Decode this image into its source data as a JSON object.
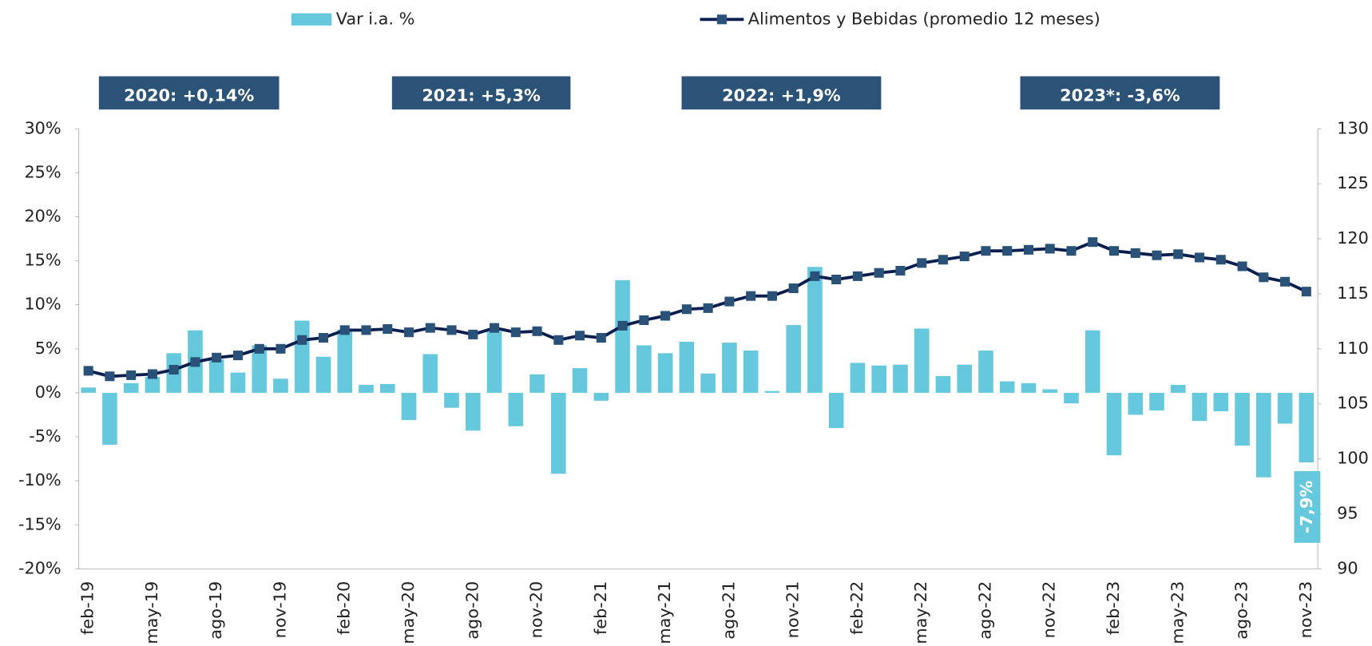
{
  "chart_data": {
    "type": "bar_line",
    "categories": [
      "feb-19",
      null,
      null,
      "may-19",
      null,
      null,
      "ago-19",
      null,
      null,
      "nov-19",
      null,
      null,
      "feb-20",
      null,
      null,
      "may-20",
      null,
      null,
      "ago-20",
      null,
      null,
      "nov-20",
      null,
      null,
      "feb-21",
      null,
      null,
      "may-21",
      null,
      null,
      "ago-21",
      null,
      null,
      "nov-21",
      null,
      null,
      "feb-22",
      null,
      null,
      "may-22",
      null,
      null,
      "ago-22",
      null,
      null,
      "nov-22",
      null,
      null,
      "feb-23",
      null,
      null,
      "may-23",
      null,
      null,
      "ago-23",
      null,
      null,
      "nov-23"
    ],
    "series": [
      {
        "name": "Var i.a. %",
        "color": "#66c8dc",
        "type": "bar",
        "values": [
          0.6,
          -5.9,
          1.1,
          1.8,
          4.5,
          7.1,
          3.8,
          2.3,
          5.4,
          1.6,
          8.2,
          4.1,
          7.2,
          0.9,
          1.0,
          -3.1,
          4.4,
          -1.7,
          -4.3,
          7.0,
          -3.8,
          2.1,
          -9.2,
          2.8,
          -0.9,
          12.8,
          5.4,
          4.5,
          5.8,
          2.2,
          5.7,
          4.8,
          0.2,
          7.7,
          14.3,
          -4.0,
          3.4,
          3.1,
          3.2,
          7.3,
          1.9,
          3.2,
          4.8,
          1.3,
          1.1,
          0.4,
          -1.2,
          7.1,
          -7.1,
          -2.5,
          -2.0,
          0.9,
          -3.2,
          -2.1,
          -6.0,
          -9.6,
          -3.5,
          -7.9
        ],
        "value_labels": [
          null,
          null,
          null,
          null,
          null,
          null,
          null,
          null,
          null,
          null,
          null,
          null,
          null,
          null,
          null,
          null,
          null,
          null,
          null,
          null,
          null,
          null,
          null,
          null,
          null,
          null,
          null,
          null,
          null,
          null,
          null,
          null,
          null,
          null,
          null,
          null,
          null,
          null,
          null,
          null,
          null,
          null,
          null,
          null,
          null,
          null,
          null,
          null,
          null,
          null,
          null,
          null,
          null,
          null,
          null,
          null,
          null,
          "-7,9%"
        ]
      },
      {
        "name": "Alimentos y Bebidas (promedio 12 meses)",
        "color": "#0a1f4f",
        "marker_color": "#2a5278",
        "type": "line",
        "axis": "y2",
        "values": [
          108.0,
          107.5,
          107.6,
          107.7,
          108.1,
          108.8,
          109.2,
          109.4,
          110.0,
          110.0,
          110.8,
          111.0,
          111.7,
          111.7,
          111.8,
          111.5,
          111.9,
          111.7,
          111.3,
          111.9,
          111.5,
          111.6,
          110.8,
          111.2,
          111.0,
          112.1,
          112.6,
          113.0,
          113.6,
          113.7,
          114.3,
          114.8,
          114.8,
          115.5,
          116.6,
          116.3,
          116.6,
          116.9,
          117.1,
          117.8,
          118.1,
          118.4,
          118.9,
          118.9,
          119.0,
          119.1,
          118.9,
          119.7,
          118.9,
          118.7,
          118.5,
          118.6,
          118.3,
          118.1,
          117.5,
          116.5,
          116.1,
          115.2
        ]
      }
    ],
    "annotations": [
      "2020: +0,14%",
      "2021: +5,3%",
      "2022: +1,9%",
      "2023*: -3,6%"
    ],
    "ylim": [
      -20,
      30
    ],
    "yticks": [
      {
        "value": -20,
        "label": "-20%"
      },
      {
        "value": -15,
        "label": "-15%"
      },
      {
        "value": -10,
        "label": "-10%"
      },
      {
        "value": -5,
        "label": "-5%"
      },
      {
        "value": 0,
        "label": "0%"
      },
      {
        "value": 5,
        "label": "5%"
      },
      {
        "value": 10,
        "label": "10%"
      },
      {
        "value": 15,
        "label": "15%"
      },
      {
        "value": 20,
        "label": "20%"
      },
      {
        "value": 25,
        "label": "25%"
      },
      {
        "value": 30,
        "label": "30%"
      }
    ],
    "y2lim": [
      90,
      130
    ],
    "y2ticks": [
      90,
      95,
      100,
      105,
      110,
      115,
      120,
      125,
      130
    ],
    "grid": false,
    "legend": "top"
  }
}
